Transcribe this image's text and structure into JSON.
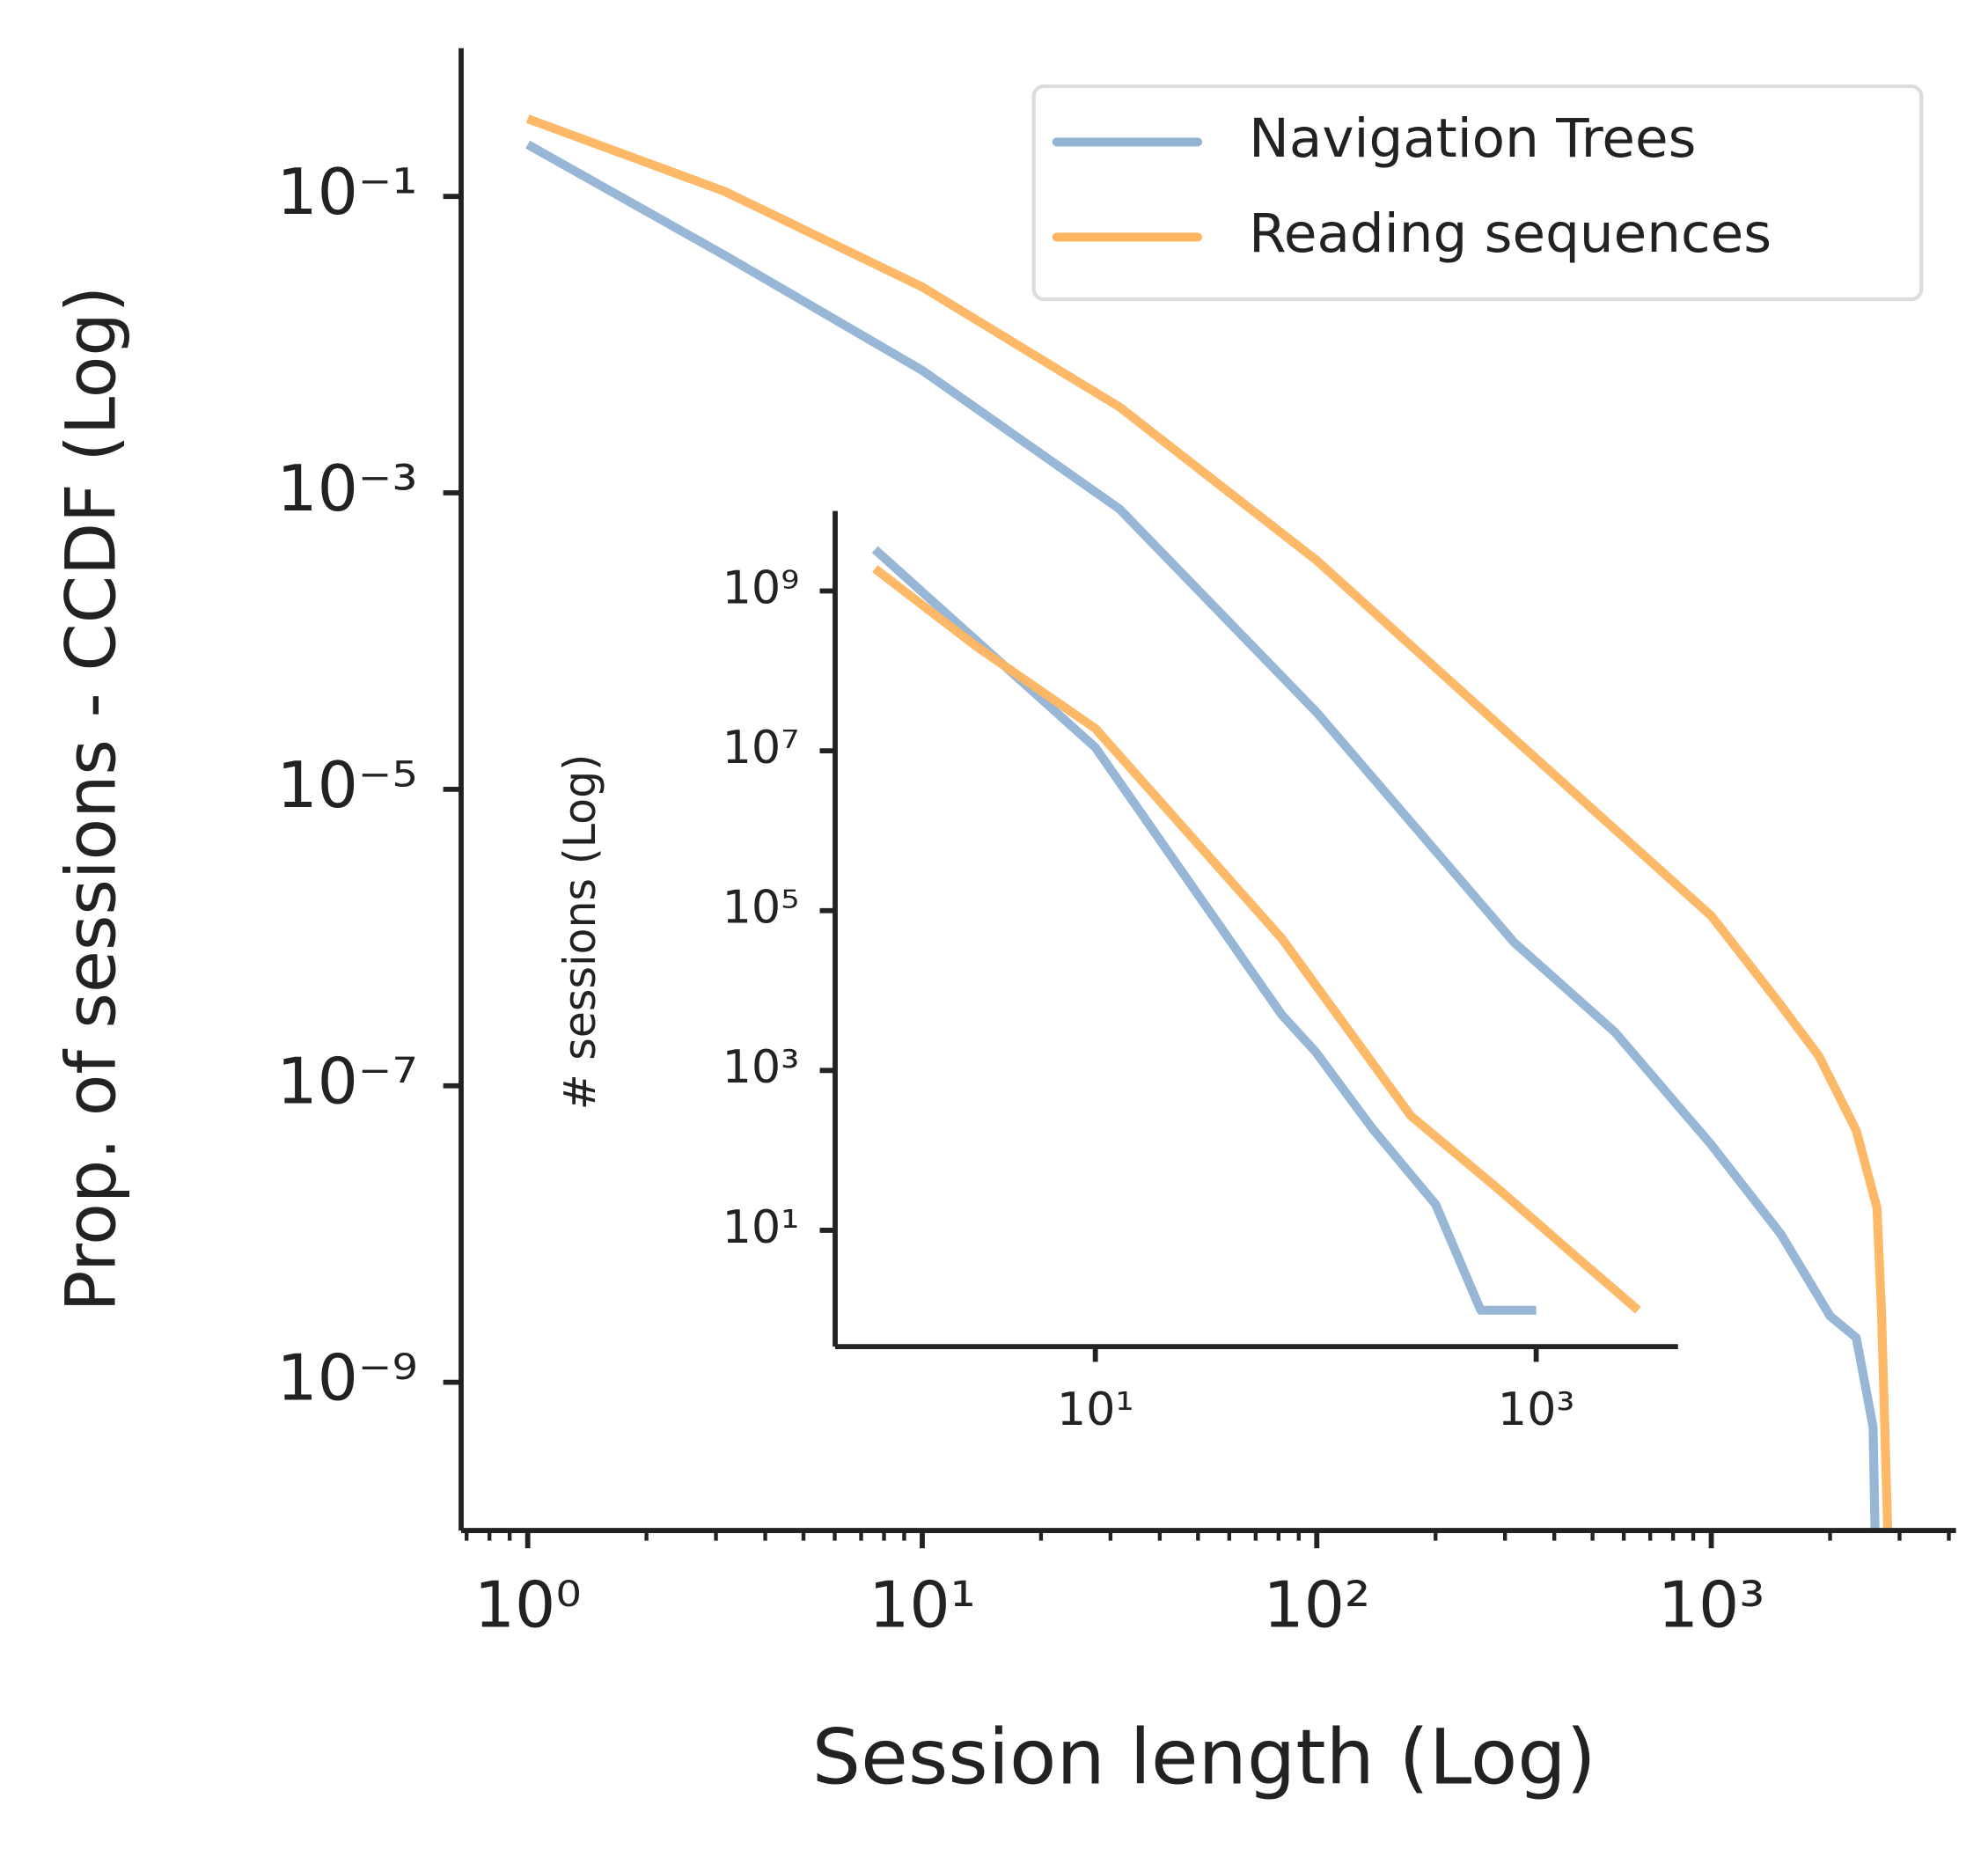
{
  "chart_data": [
    {
      "type": "line",
      "xlabel": "Session length (Log)",
      "ylabel": "Prop. of sessions - CCDF (Log)",
      "xlog": true,
      "ylog": true,
      "xlim": [
        0.678,
        4170
      ],
      "ylim": [
        1e-10,
        1
      ],
      "xticks": [
        {
          "value": 1,
          "label": "10⁰"
        },
        {
          "value": 10,
          "label": "10¹"
        },
        {
          "value": 100,
          "label": "10²"
        },
        {
          "value": 1000,
          "label": "10³"
        }
      ],
      "xminorticks": [
        0.7,
        0.8,
        0.9,
        2,
        3,
        4,
        5,
        6,
        7,
        8,
        9,
        20,
        30,
        40,
        50,
        60,
        70,
        80,
        90,
        200,
        300,
        400,
        500,
        600,
        700,
        800,
        900,
        2000,
        3000,
        4000
      ],
      "yticks": [
        {
          "value": 0.1,
          "label": "10⁻¹"
        },
        {
          "value": 0.001,
          "label": "10⁻³"
        },
        {
          "value": 1e-05,
          "label": "10⁻⁵"
        },
        {
          "value": 1e-07,
          "label": "10⁻⁷"
        },
        {
          "value": 1e-09,
          "label": "10⁻⁹"
        }
      ],
      "legend": "upper right",
      "series": [
        {
          "name": "Navigation Trees",
          "color": "#92b3d4",
          "x": [
            1,
            3.16,
            10,
            31.6,
            100,
            316,
            570,
            1000,
            1500,
            2000,
            2330,
            2570,
            2600
          ],
          "values": [
            0.224,
            0.04,
            0.0067,
            0.00078,
            3.3e-05,
            9.3e-07,
            2.3e-07,
            4e-08,
            1e-08,
            2.8e-09,
            2e-09,
            5e-10,
            1e-10
          ]
        },
        {
          "name": "Reading sequences",
          "color": "#fdb560",
          "x": [
            1,
            3.16,
            10,
            31.6,
            100,
            316,
            1000,
            1500,
            1870,
            2330,
            2630,
            2700,
            2800
          ],
          "values": [
            0.334,
            0.108,
            0.0245,
            0.0038,
            0.00035,
            2.2e-05,
            1.4e-06,
            3.5e-07,
            1.6e-07,
            5e-08,
            1.5e-08,
            3e-09,
            1e-10
          ]
        }
      ]
    },
    {
      "type": "line",
      "ylabel": "# sessions (Log)",
      "xlog": true,
      "ylog": true,
      "xlim": [
        0.66,
        4400
      ],
      "ylim": [
        0.35,
        10000000000
      ],
      "xticks": [
        {
          "value": 10,
          "label": "10¹"
        },
        {
          "value": 1000,
          "label": "10³"
        }
      ],
      "yticks": [
        {
          "value": 1000000000,
          "label": "10⁹"
        },
        {
          "value": 10000000,
          "label": "10⁷"
        },
        {
          "value": 100000,
          "label": "10⁵"
        },
        {
          "value": 1000,
          "label": "10³"
        },
        {
          "value": 10,
          "label": "10¹"
        }
      ],
      "series": [
        {
          "name": "Navigation Trees",
          "color": "#92b3d4",
          "x": [
            1,
            10,
            70,
            100,
            180,
            350,
            560,
            1000
          ],
          "values": [
            3300000000,
            11000000,
            5000,
            1700,
            190,
            21,
            1,
            1
          ]
        },
        {
          "name": "Reading sequences",
          "color": "#fdb560",
          "x": [
            1,
            2.9,
            10,
            70,
            270,
            700,
            1500,
            2900
          ],
          "values": [
            1900000000,
            200000000,
            19000000,
            45000,
            270,
            30,
            4.8,
            1
          ]
        }
      ]
    }
  ]
}
